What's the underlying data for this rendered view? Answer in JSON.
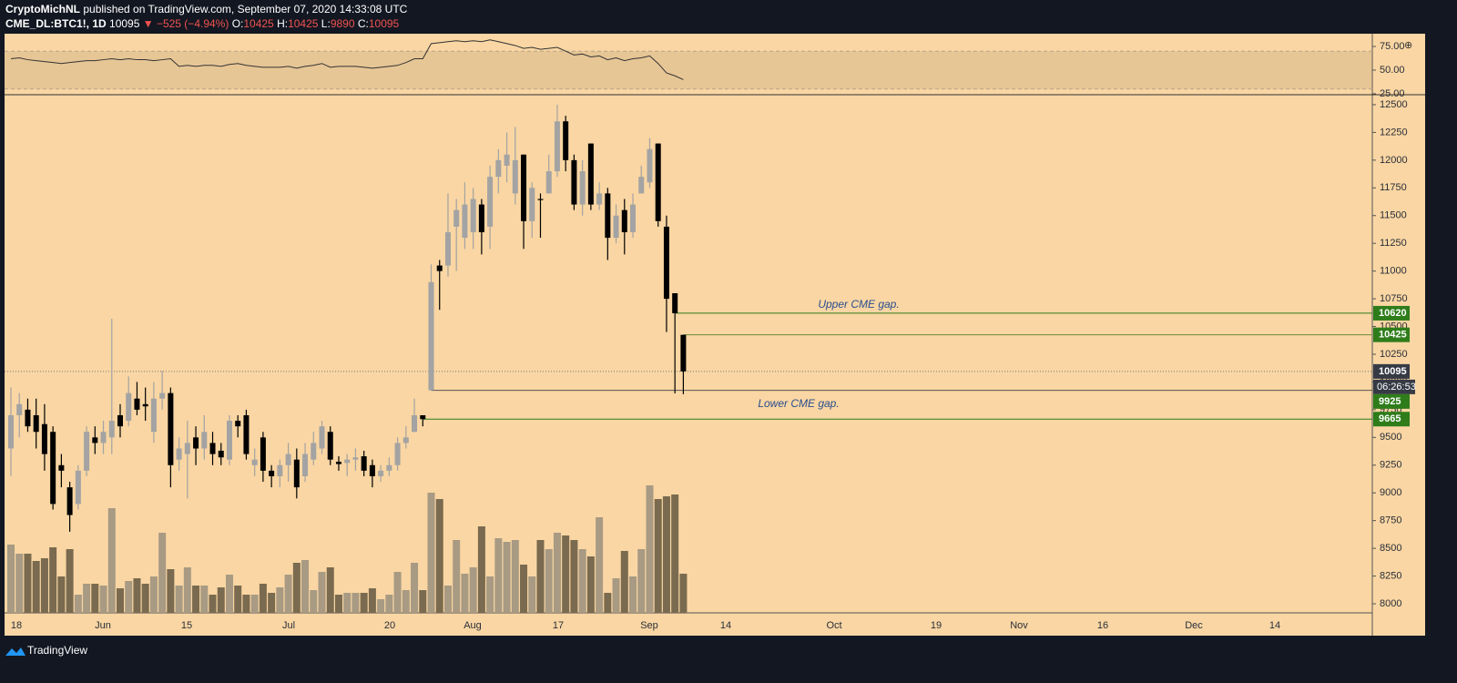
{
  "header": {
    "publisher": "CryptoMichNL",
    "published": "published on TradingView.com, September 07, 2020 14:33:08 UTC",
    "symbol": "CME_DL:BTC1!, 1D",
    "last": "10095",
    "change": "▼ −525 (−4.94%)",
    "ohlc": [
      {
        "label": "O:",
        "value": "10425"
      },
      {
        "label": "H:",
        "value": "10425"
      },
      {
        "label": "L:",
        "value": "9890"
      },
      {
        "label": "C:",
        "value": "10095"
      }
    ]
  },
  "chart_data": {
    "type": "candlestick",
    "open": [
      9400,
      9700,
      9750,
      9700,
      9620,
      9550,
      9250,
      9050,
      8900,
      9200,
      9500,
      9450,
      9500,
      9700,
      9650,
      9850,
      9800,
      9550,
      9850,
      9900,
      9300,
      9350,
      9500,
      9400,
      9450,
      9380,
      9300,
      9650,
      9700,
      9250,
      9500,
      9200,
      9150,
      9250,
      9300,
      9150,
      9300,
      9400,
      9550,
      9280,
      9270,
      9300,
      9330,
      9250,
      9150,
      9200,
      9250,
      9450,
      9550,
      9700,
      9925,
      11050,
      11050,
      11400,
      11300,
      11350,
      11600,
      11400,
      11850,
      11950,
      11700,
      12050,
      11450,
      11650,
      11700,
      11900,
      12350,
      12000,
      11600,
      12150,
      11600,
      11700,
      11300,
      11550,
      11350,
      11700,
      11800,
      12150,
      11400,
      10800,
      10425
    ],
    "high": [
      9950,
      9900,
      9850,
      9850,
      9800,
      9600,
      9350,
      9100,
      9250,
      9600,
      9600,
      9650,
      10570,
      9800,
      10050,
      10000,
      9950,
      10000,
      10100,
      9950,
      9500,
      9650,
      9600,
      9700,
      9550,
      9450,
      9700,
      9700,
      9750,
      9400,
      9550,
      9250,
      9300,
      9450,
      9400,
      9450,
      9550,
      9650,
      9600,
      9330,
      9350,
      9400,
      9380,
      9300,
      9250,
      9320,
      9500,
      9600,
      9850,
      9700,
      11060,
      11100,
      11700,
      11650,
      11800,
      11750,
      11650,
      11950,
      12100,
      12250,
      12300,
      12050,
      11800,
      11700,
      12050,
      12500,
      12400,
      12050,
      12000,
      12150,
      11800,
      11750,
      11600,
      11650,
      11700,
      11950,
      12200,
      12150,
      11500,
      10800,
      10425
    ],
    "low": [
      9150,
      9500,
      9550,
      9400,
      9200,
      8850,
      9050,
      8650,
      8850,
      9150,
      9350,
      9350,
      9350,
      9500,
      9600,
      9700,
      9650,
      9450,
      9750,
      9050,
      9200,
      8950,
      9250,
      9300,
      9250,
      9250,
      9250,
      9500,
      9300,
      9150,
      9100,
      9050,
      9050,
      9100,
      8950,
      9100,
      9250,
      9350,
      9250,
      9200,
      9150,
      9200,
      9150,
      9050,
      9100,
      9150,
      9200,
      9400,
      9550,
      9600,
      9925,
      10650,
      10950,
      11000,
      11200,
      11200,
      11150,
      11200,
      11700,
      11800,
      11600,
      11200,
      11300,
      11300,
      11700,
      11850,
      11900,
      11550,
      11500,
      11550,
      11550,
      11100,
      11250,
      11150,
      11300,
      11700,
      11750,
      11400,
      10450,
      9897,
      9890
    ],
    "close": [
      9700,
      9800,
      9600,
      9550,
      9350,
      8900,
      9200,
      8800,
      9200,
      9550,
      9450,
      9550,
      9650,
      9600,
      9900,
      9750,
      9780,
      9850,
      9900,
      9250,
      9400,
      9450,
      9400,
      9550,
      9350,
      9320,
      9650,
      9600,
      9350,
      9300,
      9200,
      9150,
      9250,
      9350,
      9050,
      9350,
      9450,
      9600,
      9300,
      9260,
      9300,
      9320,
      9200,
      9150,
      9200,
      9250,
      9450,
      9500,
      9700,
      9665,
      10900,
      11000,
      11350,
      11550,
      11600,
      11650,
      11350,
      11850,
      12000,
      12050,
      12000,
      11450,
      11750,
      11640,
      11900,
      12350,
      12000,
      11600,
      11900,
      11600,
      11700,
      11300,
      11500,
      11350,
      11600,
      11850,
      12100,
      11450,
      10750,
      10620,
      10095
    ],
    "volume": [
      75,
      65,
      65,
      57,
      60,
      72,
      40,
      70,
      20,
      32,
      32,
      30,
      115,
      27,
      35,
      38,
      32,
      40,
      88,
      48,
      30,
      50,
      30,
      30,
      20,
      28,
      42,
      30,
      20,
      20,
      32,
      22,
      28,
      42,
      55,
      58,
      25,
      45,
      50,
      20,
      22,
      22,
      22,
      27,
      15,
      20,
      45,
      25,
      55,
      25,
      132,
      125,
      30,
      80,
      43,
      50,
      95,
      40,
      82,
      78,
      80,
      53,
      40,
      80,
      70,
      88,
      85,
      80,
      70,
      62,
      105,
      22,
      38,
      68,
      40,
      70,
      140,
      125,
      128,
      130,
      43
    ],
    "up_color": "#a3a3a3",
    "down_color": "#000000",
    "volume_up_color": "#a89a83",
    "volume_down_color": "#7a6a4f",
    "ylim": [
      7918,
      12590
    ],
    "yticks": [
      8000,
      8250,
      8500,
      8750,
      9000,
      9250,
      9500,
      9750,
      10000,
      10250,
      10500,
      10750,
      11000,
      11250,
      11500,
      11750,
      12000,
      12250,
      12500
    ],
    "x_labels": [
      "18",
      "Jun",
      "15",
      "Jul",
      "20",
      "Aug",
      "17",
      "Sep",
      "14",
      "Oct",
      "19",
      "Nov",
      "16",
      "Dec",
      "14"
    ],
    "levels": [
      {
        "value": 10620,
        "color": "#2e7d1a"
      },
      {
        "value": 10425,
        "color": "#2e7d1a"
      },
      {
        "value": 10095,
        "color": "#363a45",
        "countdown": "06:26:53"
      },
      {
        "value": 9925,
        "color": "#2e7d1a"
      },
      {
        "value": 9665,
        "color": "#2e7d1a"
      }
    ],
    "annotations": [
      "Upper CME gap.",
      "Lower CME gap."
    ],
    "rsi": {
      "values": [
        62,
        63,
        61,
        60,
        59,
        58,
        57,
        58,
        59,
        60,
        60,
        61,
        62,
        61,
        62,
        61,
        61,
        60,
        61,
        62,
        54,
        55,
        54,
        55,
        55,
        54,
        56,
        57,
        55,
        54,
        53,
        53,
        53,
        54,
        52,
        54,
        55,
        57,
        53,
        54,
        54,
        54,
        53,
        52,
        53,
        54,
        55,
        58,
        62,
        62,
        78,
        79,
        80,
        81,
        80,
        81,
        80,
        82,
        80,
        78,
        76,
        73,
        74,
        72,
        73,
        74,
        70,
        66,
        67,
        64,
        65,
        61,
        63,
        60,
        62,
        63,
        65,
        57,
        47,
        44,
        40
      ],
      "color": "#333333",
      "ylim": [
        25,
        87.5
      ],
      "band": [
        30,
        70
      ],
      "yticks": [
        {
          "value": 25,
          "label": "25.00"
        },
        {
          "value": 50,
          "label": "50.00"
        },
        {
          "value": 75,
          "label": "75.00"
        }
      ]
    }
  }
}
